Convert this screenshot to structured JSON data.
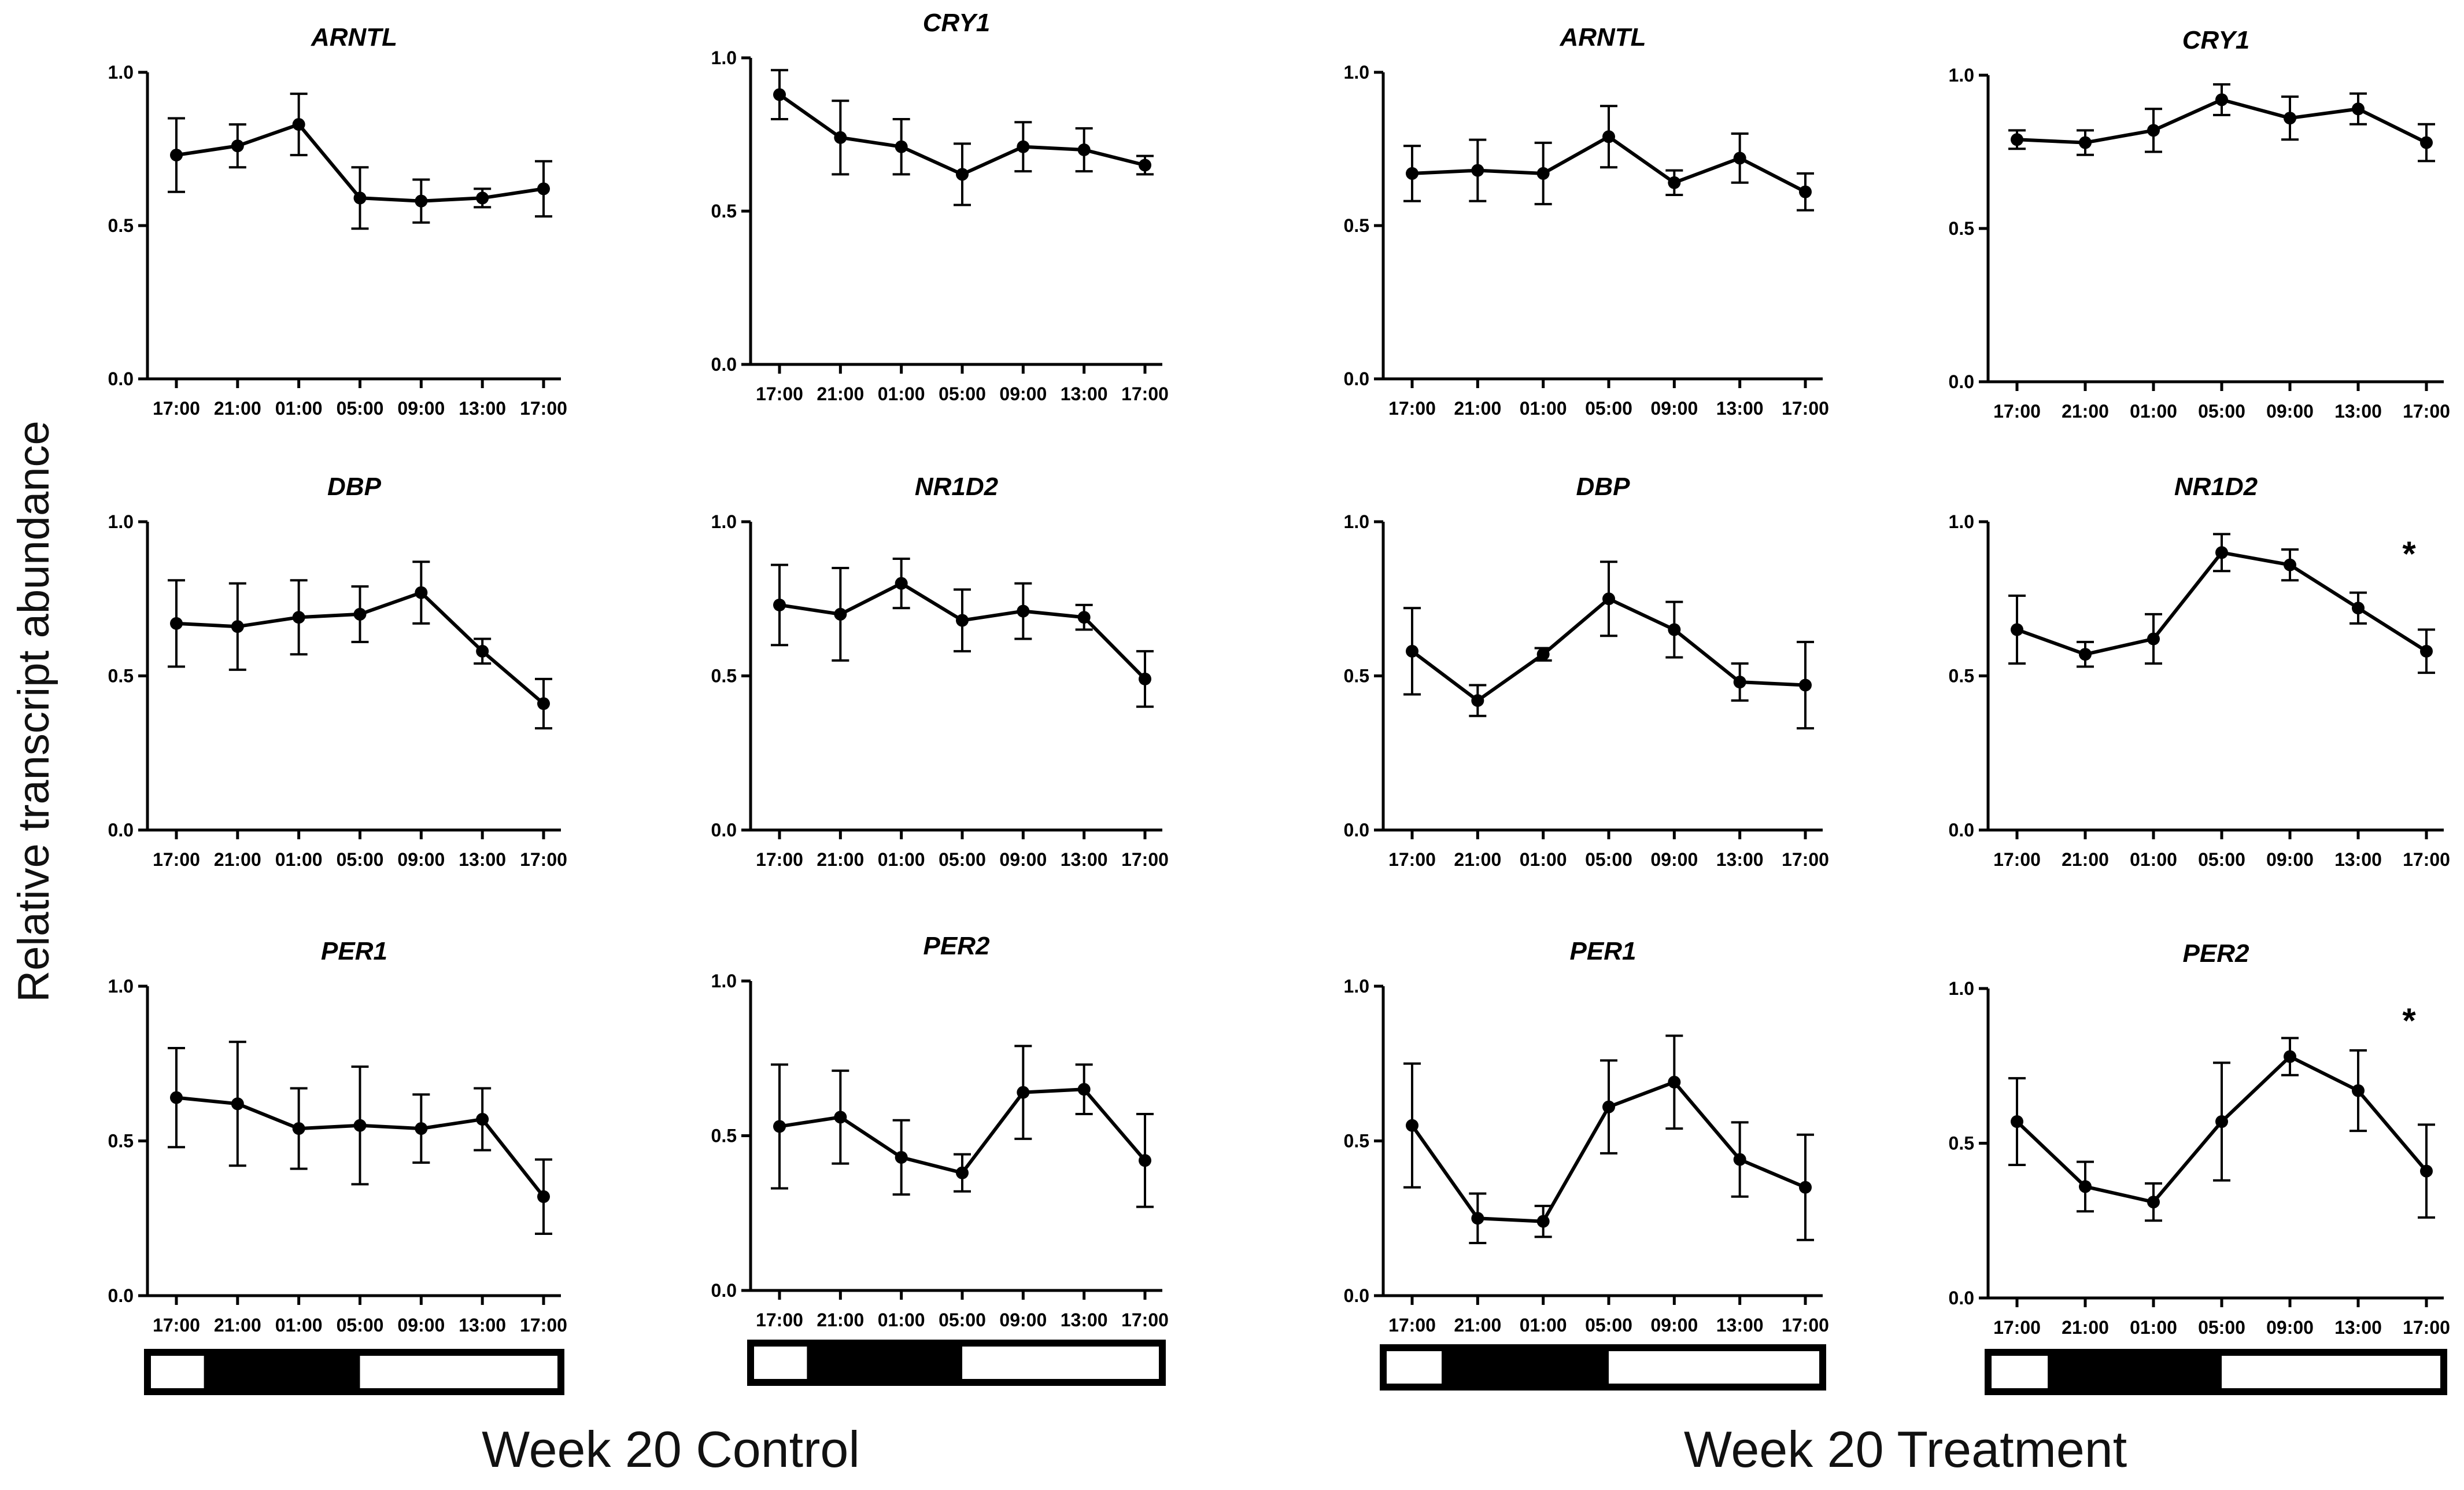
{
  "figure": {
    "y_axis_label": "Relative transcript abundance",
    "groups": [
      "Week 20 Control",
      "Week 20 Treatment"
    ],
    "light_dark_bar": {
      "segments": [
        "light",
        "dark",
        "light"
      ],
      "dark_start": "19:00",
      "dark_end": "05:00"
    }
  },
  "chart_data": [
    {
      "type": "line",
      "title": "ARNTL",
      "group": "Week 20 Control",
      "x": [
        "17:00",
        "21:00",
        "01:00",
        "05:00",
        "09:00",
        "13:00",
        "17:00"
      ],
      "values": [
        0.73,
        0.76,
        0.83,
        0.59,
        0.58,
        0.59,
        0.62
      ],
      "errors": [
        0.12,
        0.07,
        0.1,
        0.1,
        0.07,
        0.03,
        0.09
      ],
      "ylim": [
        0,
        1
      ],
      "yticks": [
        "0.0",
        "0.5",
        "1.0"
      ],
      "annotation": ""
    },
    {
      "type": "line",
      "title": "CRY1",
      "group": "Week 20 Control",
      "x": [
        "17:00",
        "21:00",
        "01:00",
        "05:00",
        "09:00",
        "13:00",
        "17:00"
      ],
      "values": [
        0.88,
        0.74,
        0.71,
        0.62,
        0.71,
        0.7,
        0.65
      ],
      "errors": [
        0.08,
        0.12,
        0.09,
        0.1,
        0.08,
        0.07,
        0.03
      ],
      "ylim": [
        0,
        1
      ],
      "yticks": [
        "0.0",
        "0.5",
        "1.0"
      ],
      "annotation": ""
    },
    {
      "type": "line",
      "title": "ARNTL",
      "group": "Week 20 Treatment",
      "x": [
        "17:00",
        "21:00",
        "01:00",
        "05:00",
        "09:00",
        "13:00",
        "17:00"
      ],
      "values": [
        0.67,
        0.68,
        0.67,
        0.79,
        0.64,
        0.72,
        0.61
      ],
      "errors": [
        0.09,
        0.1,
        0.1,
        0.1,
        0.04,
        0.08,
        0.06
      ],
      "ylim": [
        0,
        1
      ],
      "yticks": [
        "0.0",
        "0.5",
        "1.0"
      ],
      "annotation": ""
    },
    {
      "type": "line",
      "title": "CRY1",
      "group": "Week 20 Treatment",
      "x": [
        "17:00",
        "21:00",
        "01:00",
        "05:00",
        "09:00",
        "13:00",
        "17:00"
      ],
      "values": [
        0.79,
        0.78,
        0.82,
        0.92,
        0.86,
        0.89,
        0.78
      ],
      "errors": [
        0.03,
        0.04,
        0.07,
        0.05,
        0.07,
        0.05,
        0.06
      ],
      "ylim": [
        0,
        1
      ],
      "yticks": [
        "0.0",
        "0.5",
        "1.0"
      ],
      "annotation": ""
    },
    {
      "type": "line",
      "title": "DBP",
      "group": "Week 20 Control",
      "x": [
        "17:00",
        "21:00",
        "01:00",
        "05:00",
        "09:00",
        "13:00",
        "17:00"
      ],
      "values": [
        0.67,
        0.66,
        0.69,
        0.7,
        0.77,
        0.58,
        0.41
      ],
      "errors": [
        0.14,
        0.14,
        0.12,
        0.09,
        0.1,
        0.04,
        0.08
      ],
      "ylim": [
        0,
        1
      ],
      "yticks": [
        "0.0",
        "0.5",
        "1.0"
      ],
      "annotation": ""
    },
    {
      "type": "line",
      "title": "NR1D2",
      "group": "Week 20 Control",
      "x": [
        "17:00",
        "21:00",
        "01:00",
        "05:00",
        "09:00",
        "13:00",
        "17:00"
      ],
      "values": [
        0.73,
        0.7,
        0.8,
        0.68,
        0.71,
        0.69,
        0.49
      ],
      "errors": [
        0.13,
        0.15,
        0.08,
        0.1,
        0.09,
        0.04,
        0.09
      ],
      "ylim": [
        0,
        1
      ],
      "yticks": [
        "0.0",
        "0.5",
        "1.0"
      ],
      "annotation": ""
    },
    {
      "type": "line",
      "title": "DBP",
      "group": "Week 20 Treatment",
      "x": [
        "17:00",
        "21:00",
        "01:00",
        "05:00",
        "09:00",
        "13:00",
        "17:00"
      ],
      "values": [
        0.58,
        0.42,
        0.57,
        0.75,
        0.65,
        0.48,
        0.47
      ],
      "errors": [
        0.14,
        0.05,
        0.02,
        0.12,
        0.09,
        0.06,
        0.14
      ],
      "ylim": [
        0,
        1
      ],
      "yticks": [
        "0.0",
        "0.5",
        "1.0"
      ],
      "annotation": ""
    },
    {
      "type": "line",
      "title": "NR1D2",
      "group": "Week 20 Treatment",
      "x": [
        "17:00",
        "21:00",
        "01:00",
        "05:00",
        "09:00",
        "13:00",
        "17:00"
      ],
      "values": [
        0.65,
        0.57,
        0.62,
        0.9,
        0.86,
        0.72,
        0.58
      ],
      "errors": [
        0.11,
        0.04,
        0.08,
        0.06,
        0.05,
        0.05,
        0.07
      ],
      "ylim": [
        0,
        1
      ],
      "yticks": [
        "0.0",
        "0.5",
        "1.0"
      ],
      "annotation": "*"
    },
    {
      "type": "line",
      "title": "PER1",
      "group": "Week 20 Control",
      "x": [
        "17:00",
        "21:00",
        "01:00",
        "05:00",
        "09:00",
        "13:00",
        "17:00"
      ],
      "values": [
        0.64,
        0.62,
        0.54,
        0.55,
        0.54,
        0.57,
        0.32
      ],
      "errors": [
        0.16,
        0.2,
        0.13,
        0.19,
        0.11,
        0.1,
        0.12
      ],
      "ylim": [
        0,
        1
      ],
      "yticks": [
        "0.0",
        "0.5",
        "1.0"
      ],
      "annotation": ""
    },
    {
      "type": "line",
      "title": "PER2",
      "group": "Week 20 Control",
      "x": [
        "17:00",
        "21:00",
        "01:00",
        "05:00",
        "09:00",
        "13:00",
        "17:00"
      ],
      "values": [
        0.53,
        0.56,
        0.43,
        0.38,
        0.64,
        0.65,
        0.42
      ],
      "errors": [
        0.2,
        0.15,
        0.12,
        0.06,
        0.15,
        0.08,
        0.15
      ],
      "ylim": [
        0,
        1
      ],
      "yticks": [
        "0.0",
        "0.5",
        "1.0"
      ],
      "annotation": ""
    },
    {
      "type": "line",
      "title": "PER1",
      "group": "Week 20 Treatment",
      "x": [
        "17:00",
        "21:00",
        "01:00",
        "05:00",
        "09:00",
        "13:00",
        "17:00"
      ],
      "values": [
        0.55,
        0.25,
        0.24,
        0.61,
        0.69,
        0.44,
        0.35
      ],
      "errors": [
        0.2,
        0.08,
        0.05,
        0.15,
        0.15,
        0.12,
        0.17
      ],
      "ylim": [
        0,
        1
      ],
      "yticks": [
        "0.0",
        "0.5",
        "1.0"
      ],
      "annotation": ""
    },
    {
      "type": "line",
      "title": "PER2",
      "group": "Week 20 Treatment",
      "x": [
        "17:00",
        "21:00",
        "01:00",
        "05:00",
        "09:00",
        "13:00",
        "17:00"
      ],
      "values": [
        0.57,
        0.36,
        0.31,
        0.57,
        0.78,
        0.67,
        0.41
      ],
      "errors": [
        0.14,
        0.08,
        0.06,
        0.19,
        0.06,
        0.13,
        0.15
      ],
      "ylim": [
        0,
        1
      ],
      "yticks": [
        "0.0",
        "0.5",
        "1.0"
      ],
      "annotation": "*"
    }
  ]
}
